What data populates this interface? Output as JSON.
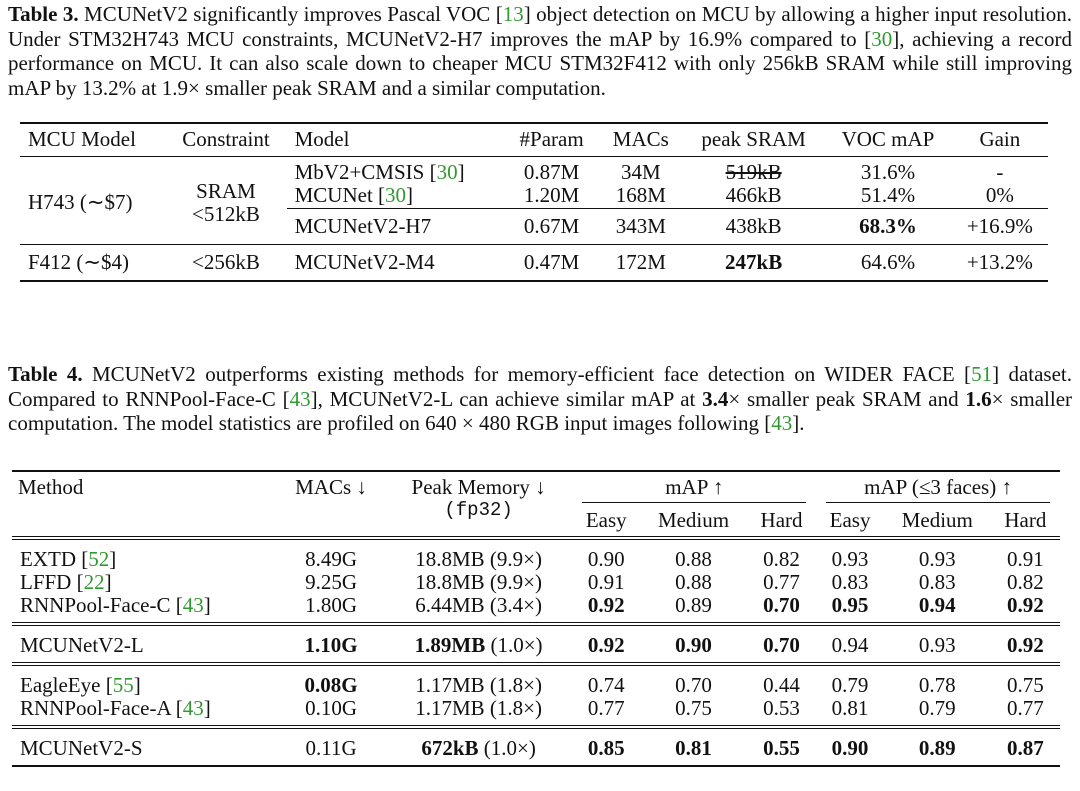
{
  "table3": {
    "caption": [
      {
        "text": "Table 3.",
        "style": "bold"
      },
      " MCUNetV2 significantly improves Pascal VOC [",
      {
        "text": "13",
        "style": "cite"
      },
      "] object detection on MCU by allowing a higher input resolution. Under STM32H743 MCU constraints, MCUNetV2-H7 improves the mAP by 16.9% compared to [",
      {
        "text": "30",
        "style": "cite"
      },
      "], achieving a record performance on MCU. It can also scale down to cheaper MCU STM32F412 with only 256kB SRAM while still improving mAP by 13.2% at 1.9× smaller peak SRAM and a similar computation."
    ],
    "header": [
      "MCU Model",
      "Constraint",
      "Model",
      "#Param",
      "MACs",
      "peak SRAM",
      "VOC mAP",
      "Gain"
    ],
    "groups": [
      {
        "mcu_model": "H743 (∼$7)",
        "constraint": [
          {
            "text": "SRAM",
            "style": "line"
          },
          {
            "text": "<512kB",
            "style": "line"
          }
        ],
        "rows": [
          [
            [
              "MbV2+CMSIS [",
              {
                "text": "30",
                "style": "cite"
              },
              "]"
            ],
            "0.87M",
            "34M",
            {
              "text": "519kB",
              "style": "strike"
            },
            "31.6%",
            "-"
          ],
          [
            [
              "MCUNet [",
              {
                "text": "30",
                "style": "cite"
              },
              "]"
            ],
            "1.20M",
            "168M",
            "466kB",
            "51.4%",
            "0%"
          ],
          [
            "MCUNetV2-H7",
            "0.67M",
            "343M",
            "438kB",
            {
              "text": "68.3%",
              "style": "bold"
            },
            "+16.9%"
          ]
        ]
      },
      {
        "mcu_model": "F412 (∼$4)",
        "constraint": "<256kB",
        "rows": [
          [
            "MCUNetV2-M4",
            "0.47M",
            "172M",
            {
              "text": "247kB",
              "style": "bold"
            },
            "64.6%",
            "+13.2%"
          ]
        ]
      }
    ]
  },
  "table4": {
    "caption": [
      {
        "text": "Table 4.",
        "style": "bold"
      },
      " MCUNetV2 outperforms existing methods for memory-efficient face detection on WIDER FACE [",
      {
        "text": "51",
        "style": "cite"
      },
      "] dataset. Compared to RNNPool-Face-C [",
      {
        "text": "43",
        "style": "cite"
      },
      "], MCUNetV2-L can achieve similar mAP at ",
      {
        "text": "3.4",
        "style": "bold"
      },
      "× smaller peak SRAM and ",
      {
        "text": "1.6",
        "style": "bold"
      },
      "× smaller computation. The model statistics are profiled on 640 × 480 RGB input images following [",
      {
        "text": "43",
        "style": "cite"
      },
      "]."
    ],
    "header": {
      "method": "Method",
      "macs": "MACs ↓",
      "memory": [
        "Peak Memory ↓",
        {
          "text": "(fp32)",
          "style": "line mono"
        }
      ],
      "groups": [
        "mAP ↑",
        "mAP (≤3 faces) ↑"
      ],
      "sub": [
        "Easy",
        "Medium",
        "Hard",
        "Easy",
        "Medium",
        "Hard"
      ]
    },
    "groups": [
      [
        [
          [
            "EXTD [",
            {
              "text": "52",
              "style": "cite"
            },
            "]"
          ],
          "8.49G",
          "18.8MB (9.9×)",
          "0.90",
          "0.88",
          "0.82",
          "0.93",
          "0.93",
          "0.91"
        ],
        [
          [
            "LFFD [",
            {
              "text": "22",
              "style": "cite"
            },
            "]"
          ],
          "9.25G",
          "18.8MB (9.9×)",
          "0.91",
          "0.88",
          "0.77",
          "0.83",
          "0.83",
          "0.82"
        ],
        [
          [
            "RNNPool-Face-C [",
            {
              "text": "43",
              "style": "cite"
            },
            "]"
          ],
          "1.80G",
          "6.44MB (3.4×)",
          {
            "text": "0.92",
            "style": "bold"
          },
          "0.89",
          {
            "text": "0.70",
            "style": "bold"
          },
          {
            "text": "0.95",
            "style": "bold"
          },
          {
            "text": "0.94",
            "style": "bold"
          },
          {
            "text": "0.92",
            "style": "bold"
          }
        ]
      ],
      [
        [
          "MCUNetV2-L",
          {
            "text": "1.10G",
            "style": "bold"
          },
          [
            {
              "text": "1.89MB",
              "style": "bold"
            },
            " (1.0×)"
          ],
          {
            "text": "0.92",
            "style": "bold"
          },
          {
            "text": "0.90",
            "style": "bold"
          },
          {
            "text": "0.70",
            "style": "bold"
          },
          "0.94",
          "0.93",
          {
            "text": "0.92",
            "style": "bold"
          }
        ]
      ],
      [
        [
          [
            "EagleEye [",
            {
              "text": "55",
              "style": "cite"
            },
            "]"
          ],
          {
            "text": "0.08G",
            "style": "bold"
          },
          "1.17MB (1.8×)",
          "0.74",
          "0.70",
          "0.44",
          "0.79",
          "0.78",
          "0.75"
        ],
        [
          [
            "RNNPool-Face-A [",
            {
              "text": "43",
              "style": "cite"
            },
            "]"
          ],
          "0.10G",
          "1.17MB (1.8×)",
          "0.77",
          "0.75",
          "0.53",
          "0.81",
          "0.79",
          "0.77"
        ]
      ],
      [
        [
          "MCUNetV2-S",
          "0.11G",
          [
            {
              "text": "672kB",
              "style": "bold"
            },
            " (1.0×)"
          ],
          {
            "text": "0.85",
            "style": "bold"
          },
          {
            "text": "0.81",
            "style": "bold"
          },
          {
            "text": "0.55",
            "style": "bold"
          },
          {
            "text": "0.90",
            "style": "bold"
          },
          {
            "text": "0.89",
            "style": "bold"
          },
          {
            "text": "0.87",
            "style": "bold"
          }
        ]
      ]
    ]
  }
}
